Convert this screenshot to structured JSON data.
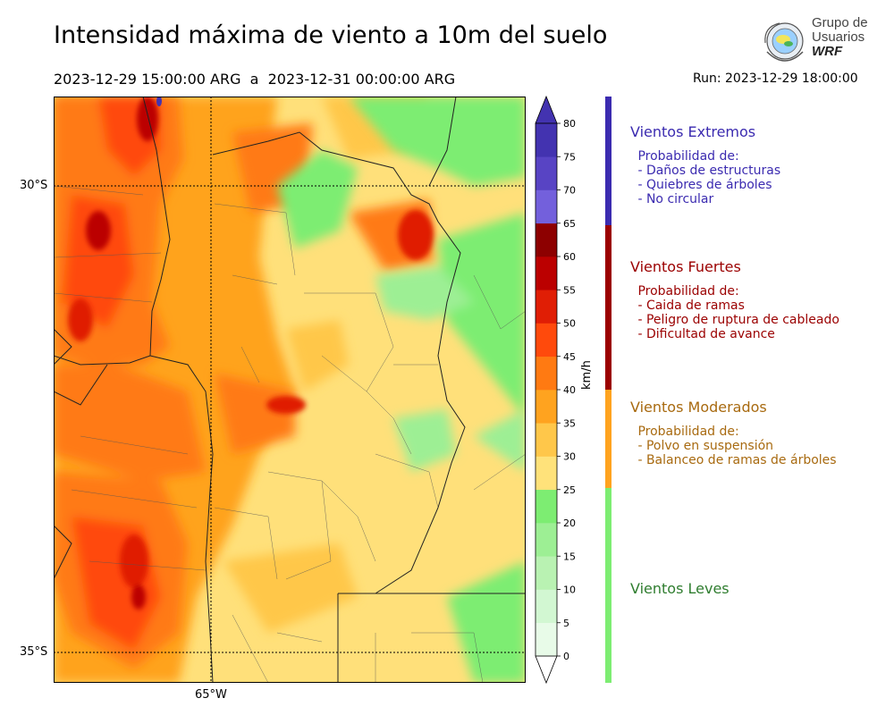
{
  "header": {
    "title": "Intensidad máxima de viento a 10m del suelo",
    "period": "2023-12-29 15:00:00 ARG  a  2023-12-31 00:00:00 ARG",
    "run": "Run: 2023-12-29 18:00:00"
  },
  "logo": {
    "line1": "Grupo de",
    "line2": "Usuarios",
    "line3": "WRF"
  },
  "map": {
    "lat_labels": [
      "30°S",
      "35°S"
    ],
    "lon_labels": [
      "65°W"
    ]
  },
  "colorbar": {
    "unit": "km/h",
    "ticks": [
      "0",
      "5",
      "10",
      "15",
      "20",
      "25",
      "30",
      "35",
      "40",
      "45",
      "50",
      "55",
      "60",
      "65",
      "70",
      "75",
      "80"
    ],
    "colors": [
      "#e8fbe8",
      "#d2f7d2",
      "#b9f2b2",
      "#9def94",
      "#7ded72",
      "#ffe27a",
      "#ffc74a",
      "#ffa31f",
      "#ff7a12",
      "#ff4a0c",
      "#e01e05",
      "#bb0000",
      "#8d0000",
      "#7360dc",
      "#5844c4",
      "#4333b0"
    ],
    "extend_low": "#ffffff",
    "extend_high": "#4333b0"
  },
  "categories": [
    {
      "title": "Vientos Extremos",
      "color": "#3b2bb0",
      "bar": "#3b2bb0",
      "desc": " Probabilidad de:\n - Daños de estructuras\n - Quiebres de árboles\n - No circular"
    },
    {
      "title": "Vientos Fuertes",
      "color": "#9b0000",
      "bar": "#9b0000",
      "desc": " Probabilidad de:\n - Caida de ramas\n - Peligro de ruptura de cableado\n - Dificultad de avance"
    },
    {
      "title": "Vientos Moderados",
      "color": "#a86a10",
      "bar": "#ffa31f",
      "desc": " Probabilidad de:\n - Polvo en suspensión\n - Balanceo de ramas de árboles"
    },
    {
      "title": "Vientos Leves",
      "color": "#2f7d2f",
      "bar": "#7ded72",
      "desc": ""
    }
  ]
}
